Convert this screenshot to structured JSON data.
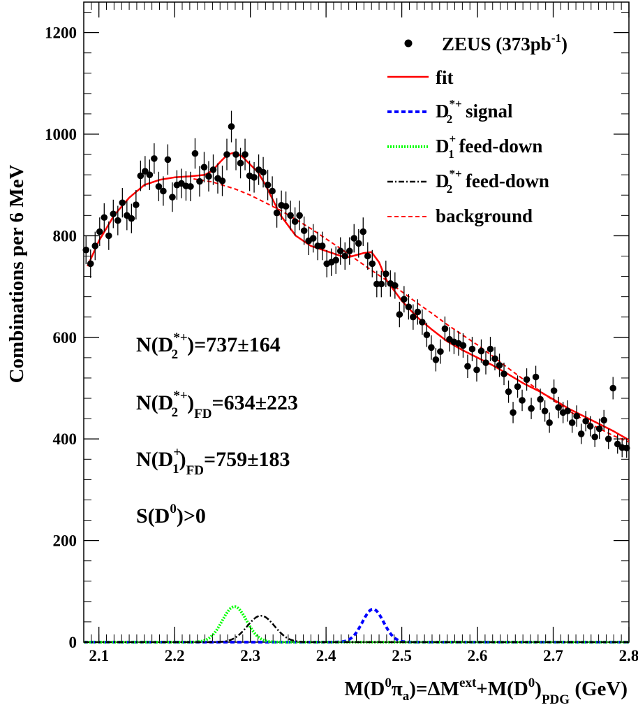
{
  "chart_data": {
    "type": "scatter",
    "xlabel_parts": {
      "M": "M(D",
      "zero1": "0",
      "pi": "π",
      "a": "a",
      "mid": ")=ΔM",
      "ext": "ext",
      "plus": "+M(D",
      "zero2": "0",
      "close": ")",
      "pdg": "PDG",
      "unit": " (GeV)"
    },
    "ylabel": "Combinations per 6 MeV",
    "xlim": [
      2.08,
      2.8
    ],
    "ylim": [
      0,
      1260
    ],
    "x_ticks": [
      2.1,
      2.2,
      2.3,
      2.4,
      2.5,
      2.6,
      2.7,
      2.8
    ],
    "x_tick_labels": [
      "2.1",
      "2.2",
      "2.3",
      "2.4",
      "2.5",
      "2.6",
      "2.7",
      "2.8"
    ],
    "y_ticks": [
      0,
      200,
      400,
      600,
      800,
      1000,
      1200
    ],
    "y_tick_labels": [
      "0",
      "200",
      "400",
      "600",
      "800",
      "1000",
      "1200"
    ],
    "grid": false,
    "legend_placement": "top-right",
    "legend": {
      "data": {
        "main": "ZEUS (373pb",
        "sup": "-1",
        "tail": ")"
      },
      "fit": "fit",
      "d2_signal": {
        "D": "D",
        "sup": "*+",
        "sub": "2",
        "text": " signal"
      },
      "d1_feeddown": {
        "D": "D",
        "sup": "+",
        "sub": "1",
        "text": " feed-down"
      },
      "d2_feeddown": {
        "D": "D",
        "sup": "*+",
        "sub": "2",
        "text": " feed-down"
      },
      "background": "background"
    },
    "annotations": {
      "n1": {
        "pre": "N(D",
        "sup": "*+",
        "sub": "2",
        "post": ")",
        "value": "=737±164"
      },
      "n2": {
        "pre": "N(D",
        "sup": "*+",
        "sub": "2",
        "post": ")",
        "fd": "FD",
        "value": "=634±223"
      },
      "n3": {
        "pre": "N(D",
        "sup": "+",
        "sub": "1",
        "post": ")",
        "fd": "FD",
        "value": "=759±183"
      },
      "s": {
        "pre": "S(D",
        "sup": "0",
        "post": ")>0"
      }
    },
    "colors": {
      "data": "#000000",
      "fit": "#ff0000",
      "d2_signal": "#0000ff",
      "d1_feeddown": "#00ff00",
      "d2_feeddown": "#000000",
      "background": "#ff0000"
    },
    "series": [
      {
        "name": "ZEUS (373pb-1)",
        "x": [
          2.083,
          2.089,
          2.095,
          2.101,
          2.107,
          2.113,
          2.119,
          2.125,
          2.131,
          2.137,
          2.143,
          2.149,
          2.155,
          2.161,
          2.167,
          2.173,
          2.179,
          2.185,
          2.191,
          2.197,
          2.203,
          2.209,
          2.215,
          2.221,
          2.227,
          2.233,
          2.239,
          2.245,
          2.251,
          2.257,
          2.263,
          2.269,
          2.275,
          2.281,
          2.287,
          2.293,
          2.299,
          2.305,
          2.311,
          2.317,
          2.323,
          2.329,
          2.335,
          2.341,
          2.347,
          2.353,
          2.359,
          2.365,
          2.371,
          2.377,
          2.383,
          2.389,
          2.395,
          2.401,
          2.407,
          2.413,
          2.419,
          2.425,
          2.431,
          2.437,
          2.443,
          2.449,
          2.455,
          2.461,
          2.467,
          2.473,
          2.479,
          2.485,
          2.491,
          2.497,
          2.503,
          2.509,
          2.515,
          2.521,
          2.527,
          2.533,
          2.539,
          2.545,
          2.551,
          2.557,
          2.563,
          2.569,
          2.575,
          2.581,
          2.587,
          2.593,
          2.599,
          2.605,
          2.611,
          2.617,
          2.623,
          2.629,
          2.635,
          2.641,
          2.647,
          2.653,
          2.659,
          2.665,
          2.671,
          2.677,
          2.683,
          2.689,
          2.695,
          2.701,
          2.707,
          2.713,
          2.719,
          2.725,
          2.731,
          2.737,
          2.743,
          2.749,
          2.755,
          2.761,
          2.767,
          2.773,
          2.779,
          2.785,
          2.791,
          2.797
        ],
        "y": [
          772,
          745,
          780,
          808,
          836,
          800,
          843,
          830,
          865,
          840,
          834,
          861,
          918,
          927,
          920,
          952,
          897,
          888,
          950,
          876,
          900,
          903,
          898,
          897,
          962,
          907,
          935,
          917,
          930,
          913,
          908,
          960,
          1015,
          960,
          943,
          960,
          918,
          915,
          930,
          925,
          900,
          888,
          845,
          860,
          858,
          840,
          828,
          840,
          810,
          790,
          795,
          780,
          780,
          745,
          748,
          752,
          770,
          760,
          770,
          795,
          785,
          808,
          760,
          745,
          705,
          705,
          725,
          706,
          702,
          645,
          675,
          660,
          640,
          650,
          630,
          605,
          580,
          556,
          572,
          617,
          596,
          591,
          588,
          584,
          543,
          577,
          536,
          573,
          550,
          577,
          558,
          545,
          528,
          493,
          452,
          503,
          476,
          517,
          460,
          522,
          478,
          455,
          432,
          495,
          462,
          452,
          455,
          432,
          445,
          410,
          435,
          425,
          404,
          420,
          437,
          400,
          500,
          390,
          383,
          382
        ],
        "err": [
          28,
          28,
          28,
          28,
          28,
          28,
          28,
          29,
          29,
          29,
          29,
          29,
          30,
          30,
          30,
          30,
          29,
          29,
          30,
          29,
          29,
          29,
          29,
          29,
          30,
          30,
          30,
          30,
          30,
          30,
          30,
          31,
          31,
          31,
          30,
          31,
          30,
          30,
          30,
          30,
          30,
          29,
          29,
          29,
          29,
          29,
          28,
          29,
          28,
          28,
          28,
          28,
          28,
          27,
          27,
          27,
          27,
          27,
          27,
          28,
          28,
          28,
          27,
          27,
          26,
          26,
          26,
          26,
          26,
          25,
          26,
          25,
          25,
          25,
          25,
          24,
          24,
          23,
          24,
          24,
          24,
          24,
          24,
          24,
          23,
          24,
          23,
          23,
          23,
          24,
          23,
          23,
          22,
          22,
          21,
          22,
          21,
          22,
          21,
          22,
          21,
          21,
          20,
          22,
          21,
          21,
          21,
          20,
          21,
          20,
          20,
          20,
          20,
          20,
          20,
          20,
          22,
          19,
          19,
          19
        ]
      },
      {
        "name": "fit",
        "x": [
          2.085,
          2.1,
          2.12,
          2.14,
          2.16,
          2.18,
          2.2,
          2.22,
          2.24,
          2.25,
          2.26,
          2.27,
          2.28,
          2.29,
          2.3,
          2.31,
          2.32,
          2.33,
          2.34,
          2.36,
          2.38,
          2.4,
          2.42,
          2.43,
          2.44,
          2.45,
          2.46,
          2.47,
          2.48,
          2.5,
          2.52,
          2.54,
          2.56,
          2.58,
          2.6,
          2.62,
          2.64,
          2.66,
          2.68,
          2.7,
          2.72,
          2.74,
          2.76,
          2.78,
          2.8
        ],
        "y": [
          740,
          790,
          840,
          875,
          900,
          910,
          915,
          917,
          920,
          928,
          945,
          960,
          964,
          955,
          940,
          925,
          900,
          870,
          840,
          800,
          780,
          770,
          760,
          758,
          762,
          766,
          768,
          748,
          712,
          672,
          640,
          615,
          592,
          575,
          560,
          545,
          528,
          510,
          495,
          478,
          460,
          445,
          430,
          415,
          398
        ]
      },
      {
        "name": "background",
        "x": [
          2.225,
          2.25,
          2.28,
          2.3,
          2.32,
          2.34,
          2.36,
          2.38,
          2.4,
          2.42,
          2.44,
          2.46,
          2.48,
          2.5,
          2.52,
          2.54,
          2.56,
          2.58,
          2.6,
          2.62,
          2.64,
          2.66,
          2.68,
          2.7,
          2.72,
          2.74,
          2.76,
          2.78,
          2.8
        ],
        "y": [
          912,
          906,
          892,
          880,
          865,
          850,
          832,
          814,
          794,
          774,
          753,
          732,
          712,
          690,
          668,
          647,
          625,
          605,
          585,
          563,
          540,
          518,
          497,
          476,
          456,
          438,
          421,
          406,
          394
        ]
      }
    ],
    "gaussians": [
      {
        "name": "D2*+ signal",
        "mean": 2.462,
        "sigma": 0.014,
        "amp": 65,
        "range": [
          2.36,
          2.8
        ]
      },
      {
        "name": "D1+ feed-down",
        "mean": 2.279,
        "sigma": 0.016,
        "amp": 70,
        "range": [
          2.15,
          2.42
        ]
      },
      {
        "name": "D2*+ feed-down",
        "mean": 2.314,
        "sigma": 0.018,
        "amp": 52,
        "range": [
          2.2,
          2.45
        ]
      }
    ]
  }
}
